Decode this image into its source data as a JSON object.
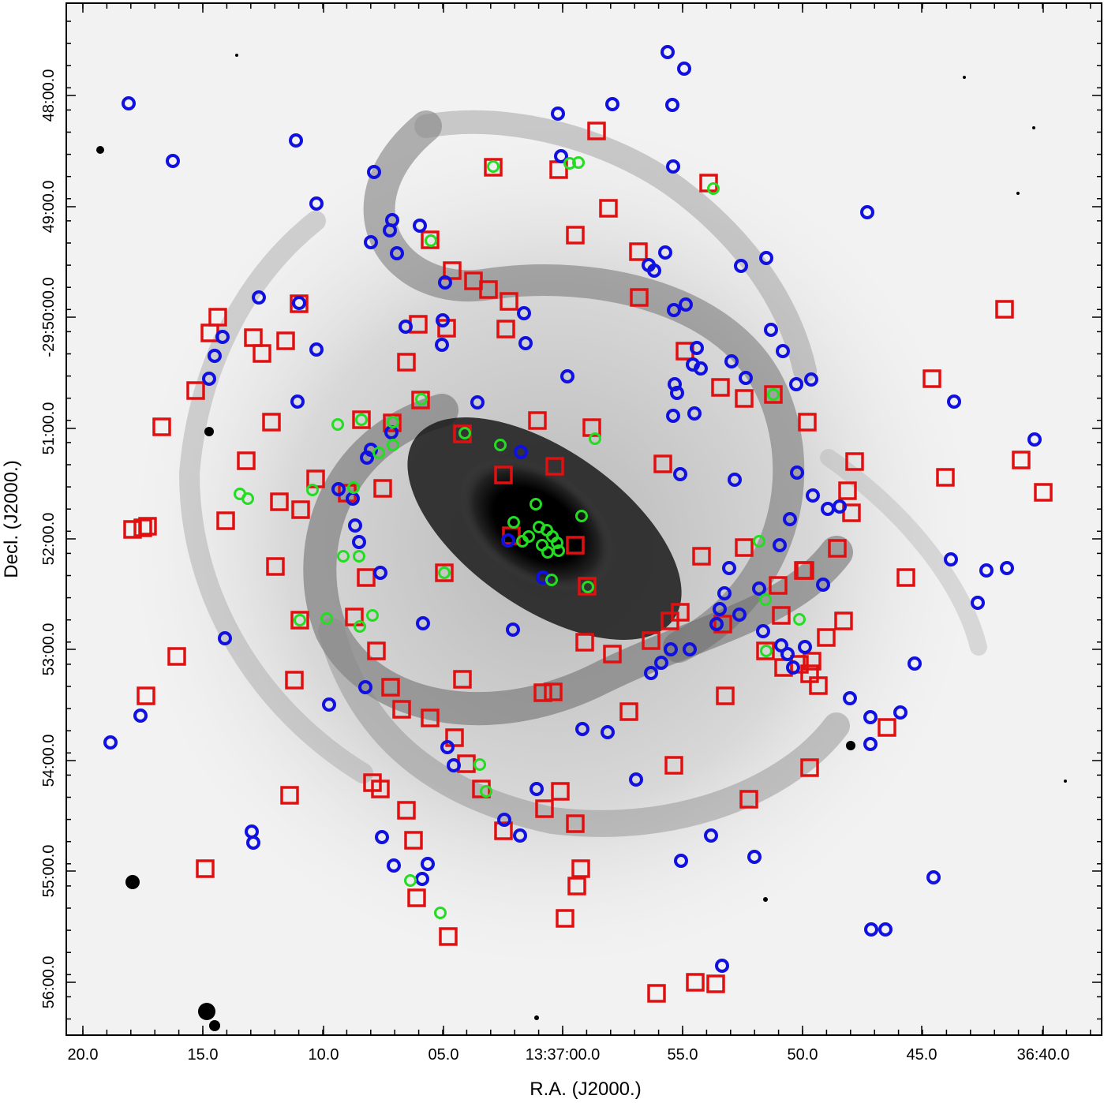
{
  "figure": {
    "x_axis": {
      "label": "R.A. (J2000.)",
      "tick_labels": [
        "20.0",
        "15.0",
        "10.0",
        "05.0",
        "13:37:00.0",
        "55.0",
        "50.0",
        "45.0",
        "36:40.0"
      ]
    },
    "y_axis": {
      "label": "Decl. (J2000.)",
      "tick_labels": [
        "48:00.0",
        "49:00.0",
        "-29:50:00.0",
        "51:00.0",
        "52:00.0",
        "53:00.0",
        "54:00.0",
        "55:00.0",
        "56:00.0"
      ]
    },
    "image": {
      "description_colors": {
        "background": "#f2f2f2",
        "galaxy": "#000000"
      },
      "marker_colors": {
        "blue_circle": "#1010e0",
        "red_square": "#e01010",
        "green_circle": "#22dd22"
      }
    }
  }
}
